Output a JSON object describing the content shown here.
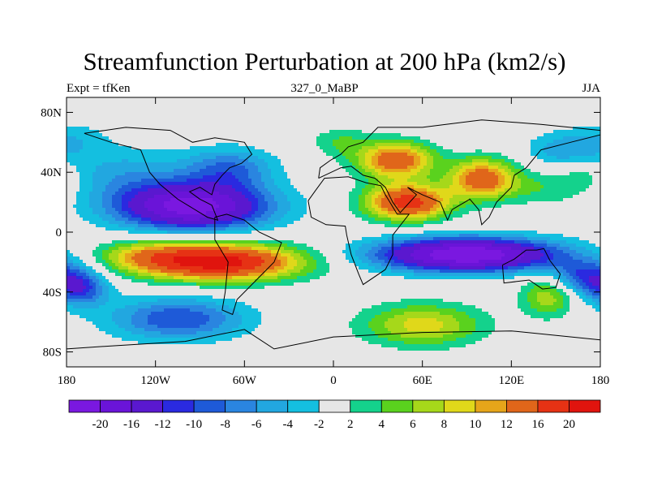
{
  "title": "Streamfunction Perturbation at 200 hPa (km2/s)",
  "subtitle_left": "Expt = tfKen",
  "subtitle_center": "327_0_MaBP",
  "subtitle_right": "JJA",
  "colors": {
    "background_missing": "#e6e6e6",
    "map_outline": "#000000",
    "palette": [
      "#7a18e0",
      "#6a14d8",
      "#5a18cf",
      "#2a2ae0",
      "#1e5ad8",
      "#2a85e0",
      "#22a7e0",
      "#14bfe0",
      "#e6e6e6",
      "#14d28c",
      "#5ad21e",
      "#a6d81a",
      "#e0d81a",
      "#e6a51a",
      "#e0661a",
      "#e63214",
      "#e0140e"
    ]
  },
  "chart_data": {
    "type": "heatmap",
    "projection": "cylindrical equidistant",
    "x_ticks": [
      "180",
      "120W",
      "60W",
      "0",
      "60E",
      "120E",
      "180"
    ],
    "x_tick_values": [
      -180,
      -120,
      -60,
      0,
      60,
      120,
      180
    ],
    "y_ticks": [
      "80N",
      "40N",
      "0",
      "40S",
      "80S"
    ],
    "y_tick_values": [
      80,
      40,
      0,
      -40,
      -80
    ],
    "xlim": [
      -180,
      180
    ],
    "ylim": [
      -90,
      90
    ],
    "colorbar_labels": [
      "-20",
      "-16",
      "-12",
      "-10",
      "-8",
      "-6",
      "-4",
      "-2",
      "2",
      "4",
      "6",
      "8",
      "10",
      "12",
      "16",
      "20"
    ],
    "colorbar_levels": [
      -20,
      -16,
      -12,
      -10,
      -8,
      -6,
      -4,
      -2,
      2,
      4,
      6,
      8,
      10,
      12,
      16,
      20
    ],
    "features": [
      {
        "lon": -95,
        "lat": 17,
        "value": -22,
        "spread_lon": 50,
        "spread_lat": 15
      },
      {
        "lon": -140,
        "lat": 38,
        "value": -5,
        "spread_lon": 45,
        "spread_lat": 18
      },
      {
        "lon": -70,
        "lat": 42,
        "value": -8,
        "spread_lon": 30,
        "spread_lat": 14
      },
      {
        "lon": -175,
        "lat": 62,
        "value": -3,
        "spread_lon": 25,
        "spread_lat": 12
      },
      {
        "lon": -78,
        "lat": -20,
        "value": 22,
        "spread_lon": 55,
        "spread_lat": 12
      },
      {
        "lon": -125,
        "lat": -15,
        "value": 6,
        "spread_lon": 35,
        "spread_lat": 10
      },
      {
        "lon": -105,
        "lat": -58,
        "value": -10,
        "spread_lon": 45,
        "spread_lat": 14
      },
      {
        "lon": -170,
        "lat": -38,
        "value": -9,
        "spread_lon": 18,
        "spread_lat": 12
      },
      {
        "lon": 60,
        "lat": -62,
        "value": 9,
        "spread_lon": 40,
        "spread_lat": 14
      },
      {
        "lon": 90,
        "lat": -15,
        "value": -24,
        "spread_lon": 60,
        "spread_lat": 11
      },
      {
        "lon": 170,
        "lat": -30,
        "value": -10,
        "spread_lon": 25,
        "spread_lat": 12
      },
      {
        "lon": 145,
        "lat": -42,
        "value": 8,
        "spread_lon": 18,
        "spread_lat": 14
      },
      {
        "lon": 50,
        "lat": 20,
        "value": 18,
        "spread_lon": 28,
        "spread_lat": 12
      },
      {
        "lon": 42,
        "lat": 48,
        "value": 15,
        "spread_lon": 25,
        "spread_lat": 12
      },
      {
        "lon": 100,
        "lat": 36,
        "value": 14,
        "spread_lon": 22,
        "spread_lat": 13
      },
      {
        "lon": 145,
        "lat": 30,
        "value": 4,
        "spread_lon": 40,
        "spread_lat": 12
      },
      {
        "lon": 155,
        "lat": 55,
        "value": -5,
        "spread_lon": 25,
        "spread_lat": 12
      },
      {
        "lon": 5,
        "lat": 60,
        "value": 4,
        "spread_lon": 20,
        "spread_lat": 10
      },
      {
        "lon": 170,
        "lat": 40,
        "value": 3,
        "spread_lon": 15,
        "spread_lat": 10
      }
    ]
  }
}
